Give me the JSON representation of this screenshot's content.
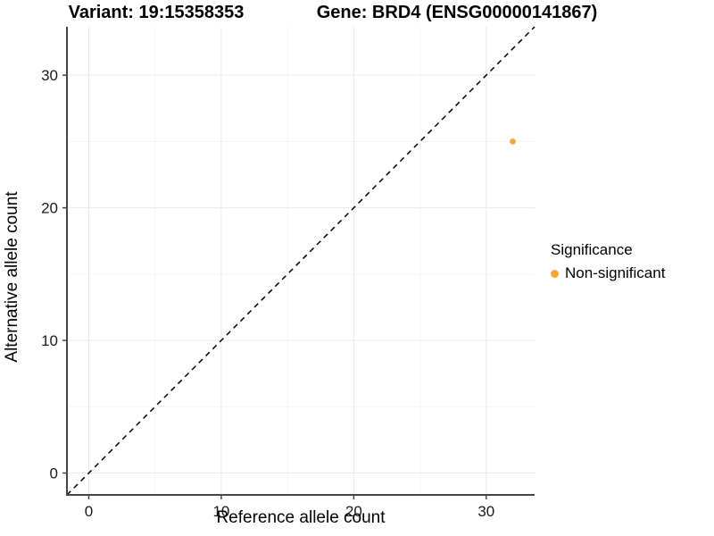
{
  "chart_data": {
    "type": "scatter",
    "title_left": "Variant: 19:15358353",
    "title_right": "Gene: BRD4 (ENSG00000141867)",
    "xlabel": "Reference allele count",
    "ylabel": "Alternative allele count",
    "xlim": [
      -1.65,
      33.65
    ],
    "ylim": [
      -1.65,
      33.65
    ],
    "x_ticks": [
      0,
      10,
      20,
      30
    ],
    "y_ticks": [
      0,
      10,
      20,
      30
    ],
    "x_minor_ticks": [
      5,
      15,
      25
    ],
    "y_minor_ticks": [
      5,
      15,
      25
    ],
    "grid": true,
    "identity_line": {
      "style": "dashed",
      "color": "#000000",
      "from": [
        -1.65,
        -1.65
      ],
      "to": [
        33.65,
        33.65
      ]
    },
    "series": [
      {
        "name": "Non-significant",
        "color": "#FAA43A",
        "points": [
          {
            "x": 32,
            "y": 25
          }
        ]
      }
    ],
    "legend": {
      "title": "Significance",
      "position": "right",
      "entries": [
        {
          "label": "Non-significant",
          "color": "#FAA43A"
        }
      ]
    },
    "style": {
      "background": "#FFFFFF",
      "axis_line_color": "#464646",
      "tick_label_color": "#1A1A1A",
      "grid_major_color": "#EAEAEA",
      "grid_minor_color": "#F5F5F5"
    }
  }
}
